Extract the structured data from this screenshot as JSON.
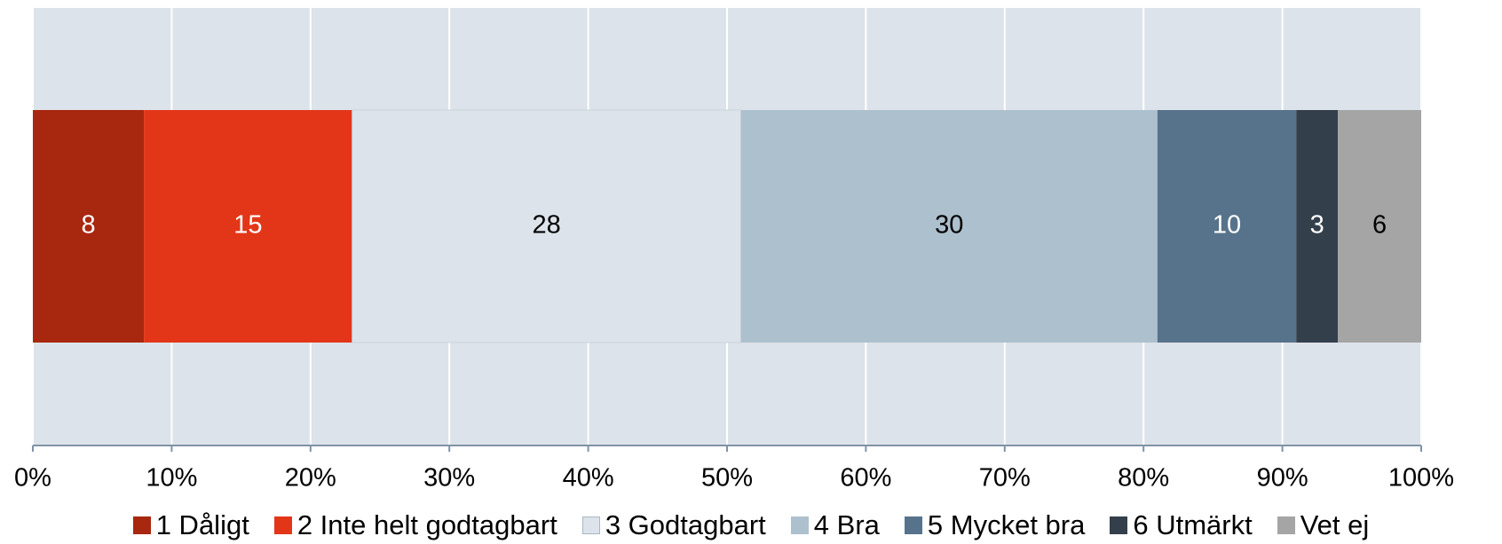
{
  "chart_data": {
    "type": "stacked-bar-horizontal",
    "categories": [
      null
    ],
    "series": [
      {
        "name": "1 Dåligt",
        "color": "#a8270f",
        "values": [
          8
        ]
      },
      {
        "name": "2 Inte helt godtagbart",
        "color": "#e33618",
        "values": [
          15
        ]
      },
      {
        "name": "3 Godtagbart",
        "color": "#dce3ea",
        "values": [
          28
        ]
      },
      {
        "name": "4 Bra",
        "color": "#adc0ce",
        "values": [
          30
        ]
      },
      {
        "name": "5 Mycket bra",
        "color": "#57738b",
        "values": [
          10
        ]
      },
      {
        "name": "6 Utmärkt",
        "color": "#333f4b",
        "values": [
          3
        ]
      },
      {
        "name": "Vet ej",
        "color": "#a5a5a5",
        "values": [
          6
        ]
      }
    ],
    "xlim": [
      0,
      100
    ],
    "xticks": [
      {
        "value": 0,
        "label": "0%"
      },
      {
        "value": 10,
        "label": "10%"
      },
      {
        "value": 20,
        "label": "20%"
      },
      {
        "value": 30,
        "label": "30%"
      },
      {
        "value": 40,
        "label": "40%"
      },
      {
        "value": 50,
        "label": "50%"
      },
      {
        "value": 60,
        "label": "60%"
      },
      {
        "value": 70,
        "label": "70%"
      },
      {
        "value": 80,
        "label": "80%"
      },
      {
        "value": 90,
        "label": "90%"
      },
      {
        "value": 100,
        "label": "100%"
      }
    ],
    "grid": true,
    "legend": "bottom"
  }
}
